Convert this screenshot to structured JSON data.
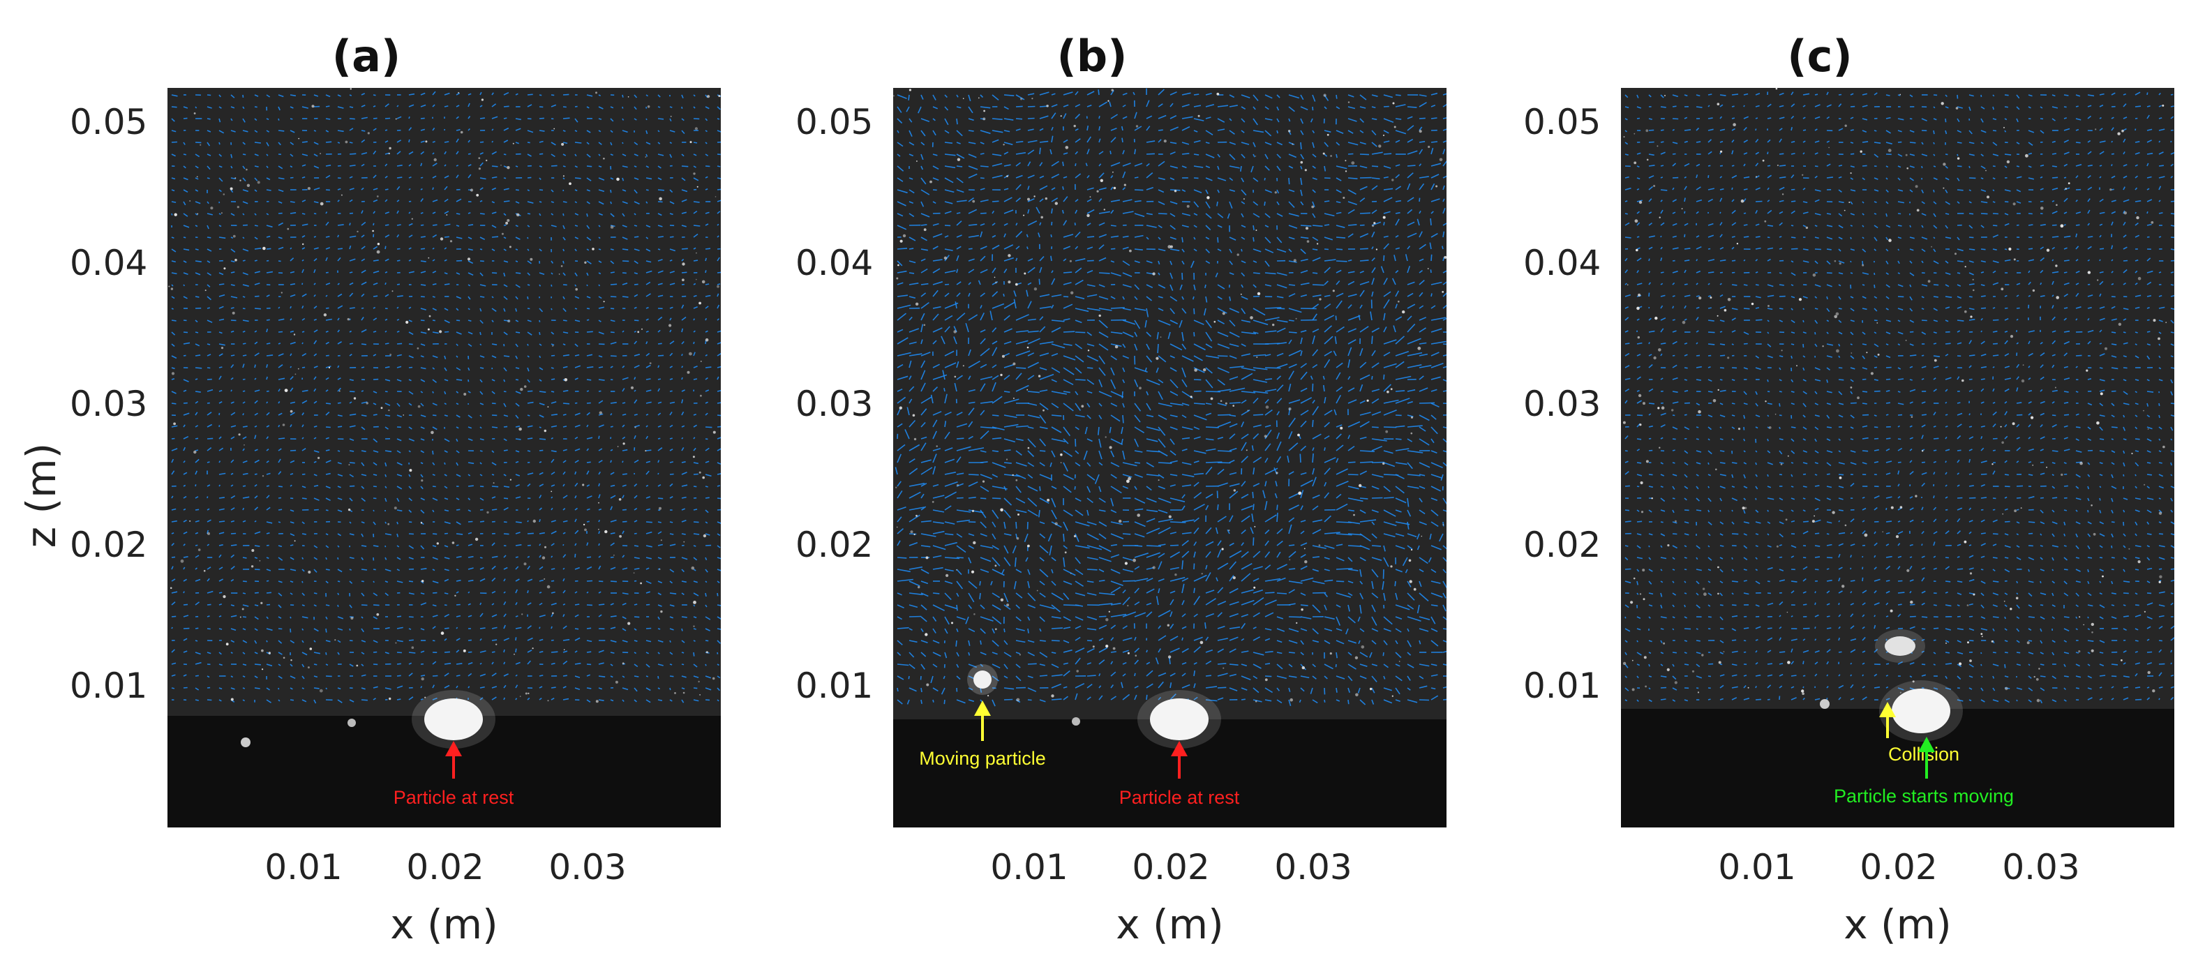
{
  "figure": {
    "panels": [
      {
        "id": "a",
        "title": "(a)",
        "annotations": [
          {
            "text": "Particle at rest",
            "color": "#ff2020"
          }
        ]
      },
      {
        "id": "b",
        "title": "(b)",
        "annotations": [
          {
            "text": "Moving particle",
            "color": "#ffff33"
          },
          {
            "text": "Particle at rest",
            "color": "#ff2020"
          }
        ]
      },
      {
        "id": "c",
        "title": "(c)",
        "annotations": [
          {
            "text": "Collision",
            "color": "#ffff33"
          },
          {
            "text": "Particle starts moving",
            "color": "#22ee22"
          }
        ]
      }
    ],
    "x_ticks": [
      "0.01",
      "0.02",
      "0.03"
    ],
    "y_ticks": [
      "0.05",
      "0.04",
      "0.03",
      "0.02",
      "0.01"
    ],
    "xlabel": "x (m)",
    "ylabel": "z (m)",
    "vector_color": "#1e90ff",
    "background_color": "#262626"
  }
}
